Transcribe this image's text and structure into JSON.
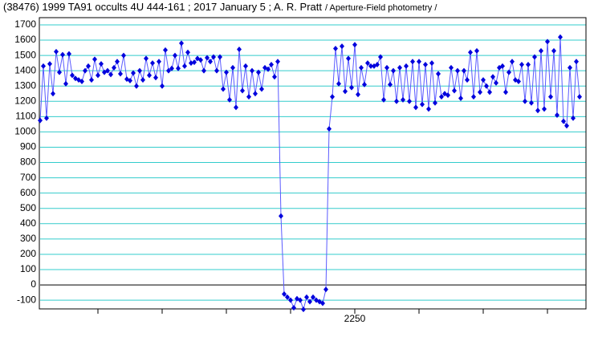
{
  "chart_data": {
    "type": "line",
    "title": "(38476) 1999 TA91 occults 4U 444-161 ; 2017 January 5 ; A. R. Pratt",
    "subtitle": "/ Aperture-Field photometry /",
    "x": [
      2152,
      2153,
      2154,
      2155,
      2156,
      2157,
      2158,
      2159,
      2160,
      2161,
      2162,
      2163,
      2164,
      2165,
      2166,
      2167,
      2168,
      2169,
      2170,
      2171,
      2172,
      2173,
      2174,
      2175,
      2176,
      2177,
      2178,
      2179,
      2180,
      2181,
      2182,
      2183,
      2184,
      2185,
      2186,
      2187,
      2188,
      2189,
      2190,
      2191,
      2192,
      2193,
      2194,
      2195,
      2196,
      2197,
      2198,
      2199,
      2200,
      2201,
      2202,
      2203,
      2204,
      2205,
      2206,
      2207,
      2208,
      2209,
      2210,
      2211,
      2212,
      2213,
      2214,
      2215,
      2216,
      2217,
      2218,
      2219,
      2220,
      2221,
      2222,
      2223,
      2224,
      2225,
      2226,
      2227,
      2228,
      2229,
      2230,
      2231,
      2232,
      2233,
      2234,
      2235,
      2236,
      2237,
      2238,
      2239,
      2240,
      2241,
      2242,
      2243,
      2244,
      2245,
      2246,
      2247,
      2248,
      2249,
      2250,
      2251,
      2252,
      2253,
      2254,
      2255,
      2256,
      2257,
      2258,
      2259,
      2260,
      2261,
      2262,
      2263,
      2264,
      2265,
      2266,
      2267,
      2268,
      2269,
      2270,
      2271,
      2272,
      2273,
      2274,
      2275,
      2276,
      2277,
      2278,
      2279,
      2280,
      2281,
      2282,
      2283,
      2284,
      2285,
      2286,
      2287,
      2288,
      2289,
      2290,
      2291,
      2292,
      2293,
      2294,
      2295,
      2296,
      2297,
      2298,
      2299,
      2300,
      2301,
      2302,
      2303,
      2304,
      2305,
      2306,
      2307,
      2308,
      2309,
      2310,
      2311,
      2312,
      2313,
      2314,
      2315,
      2316,
      2317,
      2318,
      2319,
      2320
    ],
    "series": [
      {
        "color": "#0000dd",
        "line_color": "#5a5aff",
        "values": [
          1075,
          1430,
          1090,
          1445,
          1250,
          1525,
          1390,
          1505,
          1315,
          1510,
          1370,
          1350,
          1340,
          1330,
          1400,
          1430,
          1340,
          1475,
          1370,
          1445,
          1390,
          1400,
          1375,
          1420,
          1460,
          1380,
          1500,
          1345,
          1335,
          1385,
          1300,
          1400,
          1340,
          1480,
          1370,
          1450,
          1355,
          1460,
          1300,
          1535,
          1400,
          1415,
          1500,
          1415,
          1580,
          1430,
          1520,
          1450,
          1455,
          1480,
          1470,
          1400,
          1485,
          1460,
          1490,
          1400,
          1490,
          1280,
          1390,
          1210,
          1420,
          1160,
          1540,
          1270,
          1430,
          1230,
          1400,
          1250,
          1390,
          1280,
          1420,
          1410,
          1440,
          1360,
          1460,
          450,
          -60,
          -80,
          -100,
          -150,
          -90,
          -100,
          -160,
          -80,
          -110,
          -80,
          -100,
          -110,
          -120,
          -30,
          1020,
          1230,
          1545,
          1315,
          1560,
          1265,
          1480,
          1290,
          1570,
          1245,
          1420,
          1310,
          1450,
          1430,
          1430,
          1440,
          1490,
          1210,
          1420,
          1310,
          1400,
          1200,
          1420,
          1210,
          1430,
          1200,
          1460,
          1160,
          1460,
          1180,
          1440,
          1150,
          1450,
          1190,
          1380,
          1230,
          1250,
          1240,
          1420,
          1270,
          1400,
          1220,
          1400,
          1340,
          1520,
          1230,
          1530,
          1260,
          1340,
          1300,
          1260,
          1360,
          1320,
          1420,
          1430,
          1260,
          1390,
          1460,
          1340,
          1330,
          1440,
          1200,
          1440,
          1190,
          1490,
          1140,
          1530,
          1150,
          1590,
          1230,
          1530,
          1110,
          1620,
          1070,
          1040,
          1420,
          1090,
          1460,
          1230
        ]
      }
    ],
    "xlim": [
      2152,
      2322
    ],
    "xticks": [
      {
        "value": 2170,
        "label": null
      },
      {
        "value": 2190,
        "label": null
      },
      {
        "value": 2210,
        "label": null
      },
      {
        "value": 2230,
        "label": null
      },
      2250,
      {
        "value": 2270,
        "label": null
      },
      {
        "value": 2290,
        "label": null
      },
      {
        "value": 2310,
        "label": null
      }
    ],
    "ylim": [
      -157,
      1747
    ],
    "yticks": [
      -100,
      0,
      100,
      200,
      300,
      400,
      500,
      600,
      700,
      800,
      900,
      1000,
      1100,
      1200,
      1300,
      1400,
      1500,
      1600,
      1700
    ],
    "grid": true,
    "grid_color": "#33cccc"
  }
}
